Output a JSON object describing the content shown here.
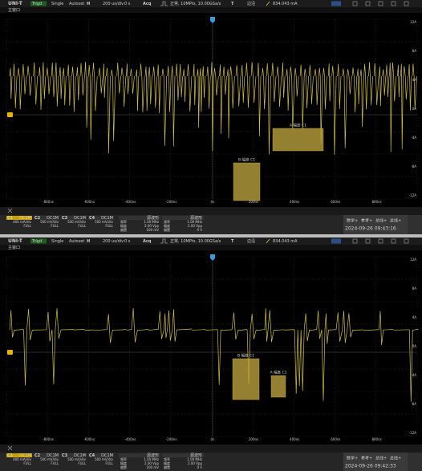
{
  "panels": [
    {
      "toolbar": {
        "brand": "UNI-T",
        "status": "Trigd",
        "mode": "Single",
        "autoset": "Autoset",
        "h": "H",
        "timebase": "200 us/div",
        "offset": "0 s",
        "acq_info": "正常, 10MPts, 10.00GSa/s",
        "trigger": "T",
        "trigger_type": "边沿",
        "trigger_level": "834.043 mA",
        "acq": "Acq"
      },
      "window": "主窗口",
      "x_labels": [
        "-800ns",
        "-600ns",
        "-400ns",
        "-200ns",
        "0s",
        "200ns",
        "400ns",
        "600ns",
        "800ns"
      ],
      "y_labels": [
        "12A",
        "8A",
        "4A",
        "0A",
        "-4A",
        "-8A",
        "-12A"
      ],
      "cursors": [
        "A 幅度 C1",
        "B 幅度 C1"
      ],
      "channels": [
        {
          "name": "C1",
          "coupling": "DC1M",
          "scale": "400 mA/div",
          "range": "FULL"
        },
        {
          "name": "C2",
          "coupling": "DC1M",
          "scale": "500 mV/div",
          "range": "FULL"
        },
        {
          "name": "C3",
          "coupling": "DC1M",
          "scale": "500 mV/div",
          "range": "FULL"
        },
        {
          "name": "C4",
          "coupling": "DC1M",
          "scale": "500 mV/div",
          "range": "FULL"
        }
      ],
      "generator": {
        "header": "源波形",
        "rows": [
          [
            "频率",
            "1.00 MHz",
            "频率",
            "1.00 MHz"
          ],
          [
            "幅度",
            "2.00 Vpp",
            "幅度",
            "2.00 Vpp"
          ],
          [
            "偏置",
            "100 mV",
            "偏置",
            "0 V"
          ]
        ]
      },
      "menu": [
        "数学+",
        "参考+",
        "总线+",
        "总线+"
      ],
      "datetime": "2024-09-26 09:43:16"
    },
    {
      "toolbar": {
        "brand": "UNI-T",
        "status": "Trigd",
        "mode": "Single",
        "autoset": "Autoset",
        "h": "H",
        "timebase": "200 us/div",
        "offset": "0 s",
        "acq_info": "正常, 10MPts, 10.00GSa/s",
        "trigger": "T",
        "trigger_type": "边沿",
        "trigger_level": "834.043 mA",
        "acq": "Acq"
      },
      "window": "主窗口",
      "x_labels": [
        "-800ns",
        "-600ns",
        "-400ns",
        "-200ns",
        "0s",
        "200ns",
        "400ns",
        "600ns",
        "800ns"
      ],
      "y_labels": [
        "12A",
        "8A",
        "4A",
        "0A",
        "-4A",
        "-8A",
        "-12A"
      ],
      "cursors": [
        "A 幅度 C1",
        "B 幅度 C1"
      ],
      "channels": [
        {
          "name": "C1",
          "coupling": "DC1M",
          "scale": "400 mA/div",
          "range": "FULL"
        },
        {
          "name": "C2",
          "coupling": "DC1M",
          "scale": "500 mV/div",
          "range": "FULL"
        },
        {
          "name": "C3",
          "coupling": "DC1M",
          "scale": "500 mV/div",
          "range": "FULL"
        },
        {
          "name": "C4",
          "coupling": "DC1M",
          "scale": "500 mV/div",
          "range": "FULL"
        }
      ],
      "generator": {
        "header": "源波形",
        "rows": [
          [
            "频率",
            "1.00 MHz",
            "频率",
            "1.00 MHz"
          ],
          [
            "幅度",
            "2.00 Vpp",
            "幅度",
            "2.00 Vpp"
          ],
          [
            "偏置",
            "100 mV",
            "偏置",
            "0 V"
          ]
        ]
      },
      "menu": [
        "数学+",
        "参考+",
        "总线+",
        "总线+"
      ],
      "datetime": "2024-09-26 09:42:33"
    }
  ]
}
